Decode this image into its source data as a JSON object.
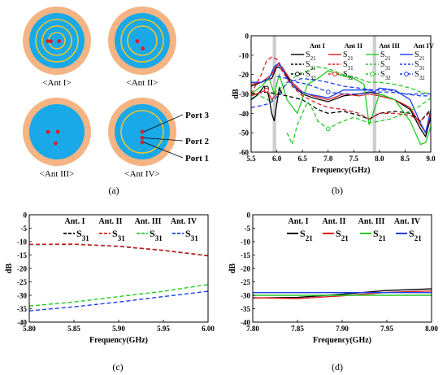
{
  "panel_a": {
    "antennas": [
      {
        "label": "<Ant I>",
        "rings": 3,
        "ports": [
          [
            -0.33,
            0.02
          ],
          [
            -0.22,
            0.02
          ],
          [
            0.08,
            0.02
          ]
        ]
      },
      {
        "label": "<Ant II>",
        "rings": 2,
        "ports": [
          [
            -0.18,
            0.02
          ],
          [
            0.02,
            0.28
          ]
        ]
      },
      {
        "label": "<Ant III>",
        "rings": 0,
        "ports": [
          [
            -0.32,
            0.0
          ],
          [
            0.03,
            0.0
          ],
          [
            -0.05,
            0.42
          ]
        ]
      },
      {
        "label": "<Ant IV>",
        "rings": 1,
        "ports": [
          [
            0.0,
            0.0
          ],
          [
            0.0,
            0.22
          ],
          [
            0.0,
            0.38
          ]
        ]
      }
    ],
    "port_labels": [
      "Port 3",
      "Port 2",
      "Port 1"
    ],
    "colors": {
      "outer": "#f4b483",
      "inner": "#1aa9e8",
      "ring": "#e9c531",
      "port": "#d81f2a"
    }
  },
  "captions": {
    "a": "(a)",
    "b": "(b)",
    "c": "(c)",
    "d": "(d)"
  },
  "chart_data": [
    {
      "id": "b",
      "type": "line",
      "xlabel": "Frequency(GHz)",
      "ylabel": "dB",
      "xlim": [
        5.5,
        9.0
      ],
      "ylim": [
        -60,
        0
      ],
      "xticks": [
        "5.5",
        "6.0",
        "6.5",
        "7.0",
        "7.5",
        "8.0",
        "8.5",
        "9.0"
      ],
      "yticks": [
        "0",
        "-10",
        "-20",
        "-30",
        "-40",
        "-50",
        "-60"
      ],
      "highlight_bands": [
        [
          5.92,
          5.99
        ],
        [
          7.87,
          7.94
        ]
      ],
      "legend_headers": [
        "Ant I",
        "Ant II",
        "Ant III",
        "Ant IV"
      ],
      "legend_param_labels": [
        "S21",
        "S31",
        "S32"
      ],
      "series": [
        {
          "param": "S21",
          "ant": "Ant I",
          "color": "#000000",
          "dash": "solid",
          "marker": "none",
          "x": [
            5.5,
            5.7,
            5.9,
            6.0,
            6.1,
            6.3,
            6.5,
            6.7,
            7.0,
            7.3,
            7.6,
            7.8,
            8.0,
            8.3,
            8.6,
            8.8,
            8.9,
            9.0
          ],
          "y": [
            -26,
            -24,
            -22,
            -16,
            -17,
            -25,
            -30,
            -32,
            -34,
            -31,
            -30,
            -29,
            -30,
            -33,
            -38,
            -48,
            -52,
            -42
          ]
        },
        {
          "param": "S21",
          "ant": "Ant II",
          "color": "#dd1f1f",
          "dash": "solid",
          "marker": "none",
          "x": [
            5.5,
            5.7,
            5.9,
            6.0,
            6.1,
            6.3,
            6.5,
            6.7,
            7.0,
            7.3,
            7.6,
            7.8,
            8.0,
            8.3,
            8.6,
            8.8,
            8.9,
            9.0
          ],
          "y": [
            -25,
            -24,
            -20,
            -15,
            -16,
            -24,
            -29,
            -31,
            -33,
            -30,
            -31,
            -30,
            -31,
            -33,
            -37,
            -46,
            -50,
            -40
          ]
        },
        {
          "param": "S21",
          "ant": "Ant III",
          "color": "#22cc22",
          "dash": "solid",
          "marker": "none",
          "x": [
            5.5,
            5.7,
            5.85,
            5.95,
            6.05,
            6.2,
            6.4,
            6.6,
            6.8,
            7.0,
            7.2,
            7.5,
            7.7,
            7.8,
            8.0,
            8.3,
            8.6,
            8.8,
            8.9,
            9.0
          ],
          "y": [
            -30,
            -26,
            -22,
            -30,
            -20,
            -33,
            -40,
            -25,
            -22,
            -18,
            -20,
            -22,
            -25,
            -46,
            -30,
            -33,
            -44,
            -56,
            -55,
            -47
          ]
        },
        {
          "param": "S21",
          "ant": "Ant IV",
          "color": "#1a3ef0",
          "dash": "solid",
          "marker": "none",
          "x": [
            5.5,
            5.7,
            5.85,
            5.95,
            6.05,
            6.2,
            6.4,
            6.6,
            7.0,
            7.3,
            7.6,
            7.8,
            7.9,
            8.0,
            8.3,
            8.6,
            8.8,
            8.9,
            9.0
          ],
          "y": [
            -24,
            -24,
            -22,
            -16,
            -14,
            -22,
            -28,
            -30,
            -32,
            -28,
            -28,
            -28,
            -29,
            -27,
            -28,
            -33,
            -45,
            -50,
            -38
          ]
        },
        {
          "param": "S31",
          "ant": "Ant I",
          "color": "#000000",
          "dash": "5,3",
          "marker": "none",
          "x": [
            5.5,
            5.8,
            6.0,
            6.2,
            6.5,
            6.8,
            7.0,
            7.3,
            7.6,
            7.8,
            8.0,
            8.3,
            8.6,
            8.8,
            9.0
          ],
          "y": [
            -30,
            -29,
            -30,
            -31,
            -33,
            -38,
            -40,
            -39,
            -41,
            -43,
            -40,
            -39,
            -40,
            -44,
            -38
          ]
        },
        {
          "param": "S31",
          "ant": "Ant II",
          "color": "#dd1f1f",
          "dash": "5,3",
          "marker": "none",
          "x": [
            5.5,
            5.7,
            5.8,
            5.9,
            6.0,
            6.1,
            6.3,
            6.5,
            6.8,
            7.0,
            7.3,
            7.6,
            7.8,
            8.0,
            8.3,
            8.6,
            8.8,
            9.0
          ],
          "y": [
            -30,
            -20,
            -13,
            -11,
            -12,
            -18,
            -26,
            -31,
            -35,
            -37,
            -38,
            -40,
            -43,
            -40,
            -40,
            -41,
            -44,
            -39
          ]
        },
        {
          "param": "S31",
          "ant": "Ant III",
          "color": "#22cc22",
          "dash": "5,3",
          "marker": "none",
          "x": [
            5.5,
            5.6,
            5.75,
            5.9,
            6.0,
            6.2,
            6.4,
            6.6,
            6.8,
            7.0,
            7.3,
            7.6,
            7.8,
            8.0,
            8.3,
            8.6,
            8.8,
            9.0
          ],
          "y": [
            -33,
            -30,
            -32,
            -34,
            -28,
            -25,
            -20,
            -18,
            -16,
            -17,
            -20,
            -22,
            -24,
            -24,
            -25,
            -27,
            -29,
            -30
          ]
        },
        {
          "param": "S31",
          "ant": "Ant IV",
          "color": "#1a3ef0",
          "dash": "5,3",
          "marker": "none",
          "x": [
            5.5,
            5.7,
            5.85,
            5.95,
            6.05,
            6.2,
            6.5,
            6.8,
            7.0,
            7.3,
            7.6,
            7.9,
            8.2,
            8.5,
            8.8,
            9.0
          ],
          "y": [
            -37,
            -36,
            -35,
            -33,
            -30,
            -24,
            -22,
            -23,
            -24,
            -26,
            -27,
            -28,
            -28,
            -30,
            -30,
            -30
          ]
        },
        {
          "param": "S32",
          "ant": "Ant I",
          "color": "#000000",
          "dash": "solid",
          "marker": "circle",
          "x": [
            5.5,
            5.6,
            5.7,
            5.75,
            5.8,
            5.85,
            5.9,
            5.95,
            6.0,
            6.05,
            6.1
          ],
          "y": [
            -33,
            -31,
            -28,
            -26,
            -27,
            -32,
            -40,
            -44,
            -35,
            -27,
            -30
          ]
        },
        {
          "param": "S32",
          "ant": "Ant II",
          "color": "#dd1f1f",
          "dash": "solid",
          "marker": "circle",
          "x": [
            5.5,
            5.6,
            5.7,
            5.8,
            5.85,
            5.9,
            6.0
          ],
          "y": [
            -31,
            -30,
            -29,
            -28,
            -30,
            -33,
            -30
          ]
        },
        {
          "param": "S32",
          "ant": "Ant III",
          "color": "#22cc22",
          "dash": "5,3",
          "marker": "circle",
          "x": [
            6.2,
            6.3,
            6.4,
            6.5,
            6.6,
            6.7,
            6.8,
            7.0,
            7.2,
            7.5,
            7.8,
            8.0,
            8.2,
            8.5,
            8.8,
            9.0
          ],
          "y": [
            -50,
            -56,
            -46,
            -40,
            -34,
            -38,
            -44,
            -48,
            -45,
            -42,
            -45,
            -44,
            -43,
            -40,
            -36,
            -32
          ]
        },
        {
          "param": "S32",
          "ant": "Ant IV",
          "color": "#1a3ef0",
          "dash": "5,3",
          "marker": "circle",
          "x": [
            6.0,
            6.2,
            6.4,
            6.6,
            6.8,
            7.0,
            7.3,
            7.6,
            7.9,
            8.2,
            8.5,
            8.8,
            9.0
          ],
          "y": [
            -21,
            -22,
            -24,
            -25,
            -27,
            -29,
            -30,
            -30,
            -29,
            -29,
            -30,
            -31,
            -31
          ]
        }
      ]
    },
    {
      "id": "c",
      "type": "line",
      "xlabel": "Frequency(GHz)",
      "ylabel": "dB",
      "xlim": [
        5.8,
        6.0
      ],
      "ylim": [
        -40,
        0
      ],
      "xticks": [
        "5.80",
        "5.85",
        "5.90",
        "5.95",
        "6.00"
      ],
      "yticks": [
        "0",
        "-5",
        "-10",
        "-15",
        "-20",
        "-25",
        "-30",
        "-35",
        "-40"
      ],
      "legend_headers": [
        "Ant. I",
        "Ant. II",
        "Ant. III",
        "Ant. IV"
      ],
      "legend_param_label": "S31",
      "series": [
        {
          "ant": "Ant. I",
          "color": "#000000",
          "dash": "5,3",
          "x": [
            5.8,
            5.85,
            5.9,
            5.95,
            6.0
          ],
          "y": [
            -11.1,
            -11.0,
            -11.8,
            -13.3,
            -15.3
          ]
        },
        {
          "ant": "Ant. II",
          "color": "#dd1f1f",
          "dash": "5,3",
          "x": [
            5.8,
            5.85,
            5.9,
            5.95,
            6.0
          ],
          "y": [
            -11.0,
            -10.9,
            -11.7,
            -13.2,
            -15.2
          ]
        },
        {
          "ant": "Ant. III",
          "color": "#22cc22",
          "dash": "5,3",
          "x": [
            5.8,
            5.85,
            5.9,
            5.95,
            6.0
          ],
          "y": [
            -34.0,
            -32.5,
            -30.5,
            -28.5,
            -26.0
          ]
        },
        {
          "ant": "Ant. IV",
          "color": "#1a3ef0",
          "dash": "5,3",
          "x": [
            5.8,
            5.85,
            5.9,
            5.95,
            6.0
          ],
          "y": [
            -35.8,
            -34.3,
            -32.5,
            -30.5,
            -28.5
          ]
        }
      ]
    },
    {
      "id": "d",
      "type": "line",
      "xlabel": "Frequency(GHz)",
      "ylabel": "dB",
      "xlim": [
        7.8,
        8.0
      ],
      "ylim": [
        -40,
        0
      ],
      "xticks": [
        "7.80",
        "7.85",
        "7.90",
        "7.95",
        "8.00"
      ],
      "yticks": [
        "0",
        "-5",
        "-10",
        "-15",
        "-20",
        "-25",
        "-30",
        "-35",
        "-40"
      ],
      "legend_headers": [
        "Ant. I",
        "Ant. II",
        "Ant. III",
        "Ant. IV"
      ],
      "legend_param_label": "S21",
      "series": [
        {
          "ant": "Ant. I",
          "color": "#000000",
          "dash": "solid",
          "x": [
            7.8,
            7.85,
            7.9,
            7.95,
            8.0
          ],
          "y": [
            -31.0,
            -30.8,
            -29.6,
            -28.2,
            -27.6
          ]
        },
        {
          "ant": "Ant. II",
          "color": "#dd1f1f",
          "dash": "solid",
          "x": [
            7.8,
            7.85,
            7.9,
            7.95,
            8.0
          ],
          "y": [
            -30.9,
            -31.2,
            -30.2,
            -28.9,
            -28.4
          ]
        },
        {
          "ant": "Ant. III",
          "color": "#22cc22",
          "dash": "solid",
          "x": [
            7.8,
            7.85,
            7.9,
            7.95,
            8.0
          ],
          "y": [
            -30.0,
            -30.0,
            -30.0,
            -30.0,
            -30.0
          ]
        },
        {
          "ant": "Ant. IV",
          "color": "#1a3ef0",
          "dash": "solid",
          "x": [
            7.8,
            7.85,
            7.9,
            7.95,
            8.0
          ],
          "y": [
            -29.0,
            -29.0,
            -29.0,
            -29.0,
            -29.0
          ]
        }
      ]
    }
  ]
}
